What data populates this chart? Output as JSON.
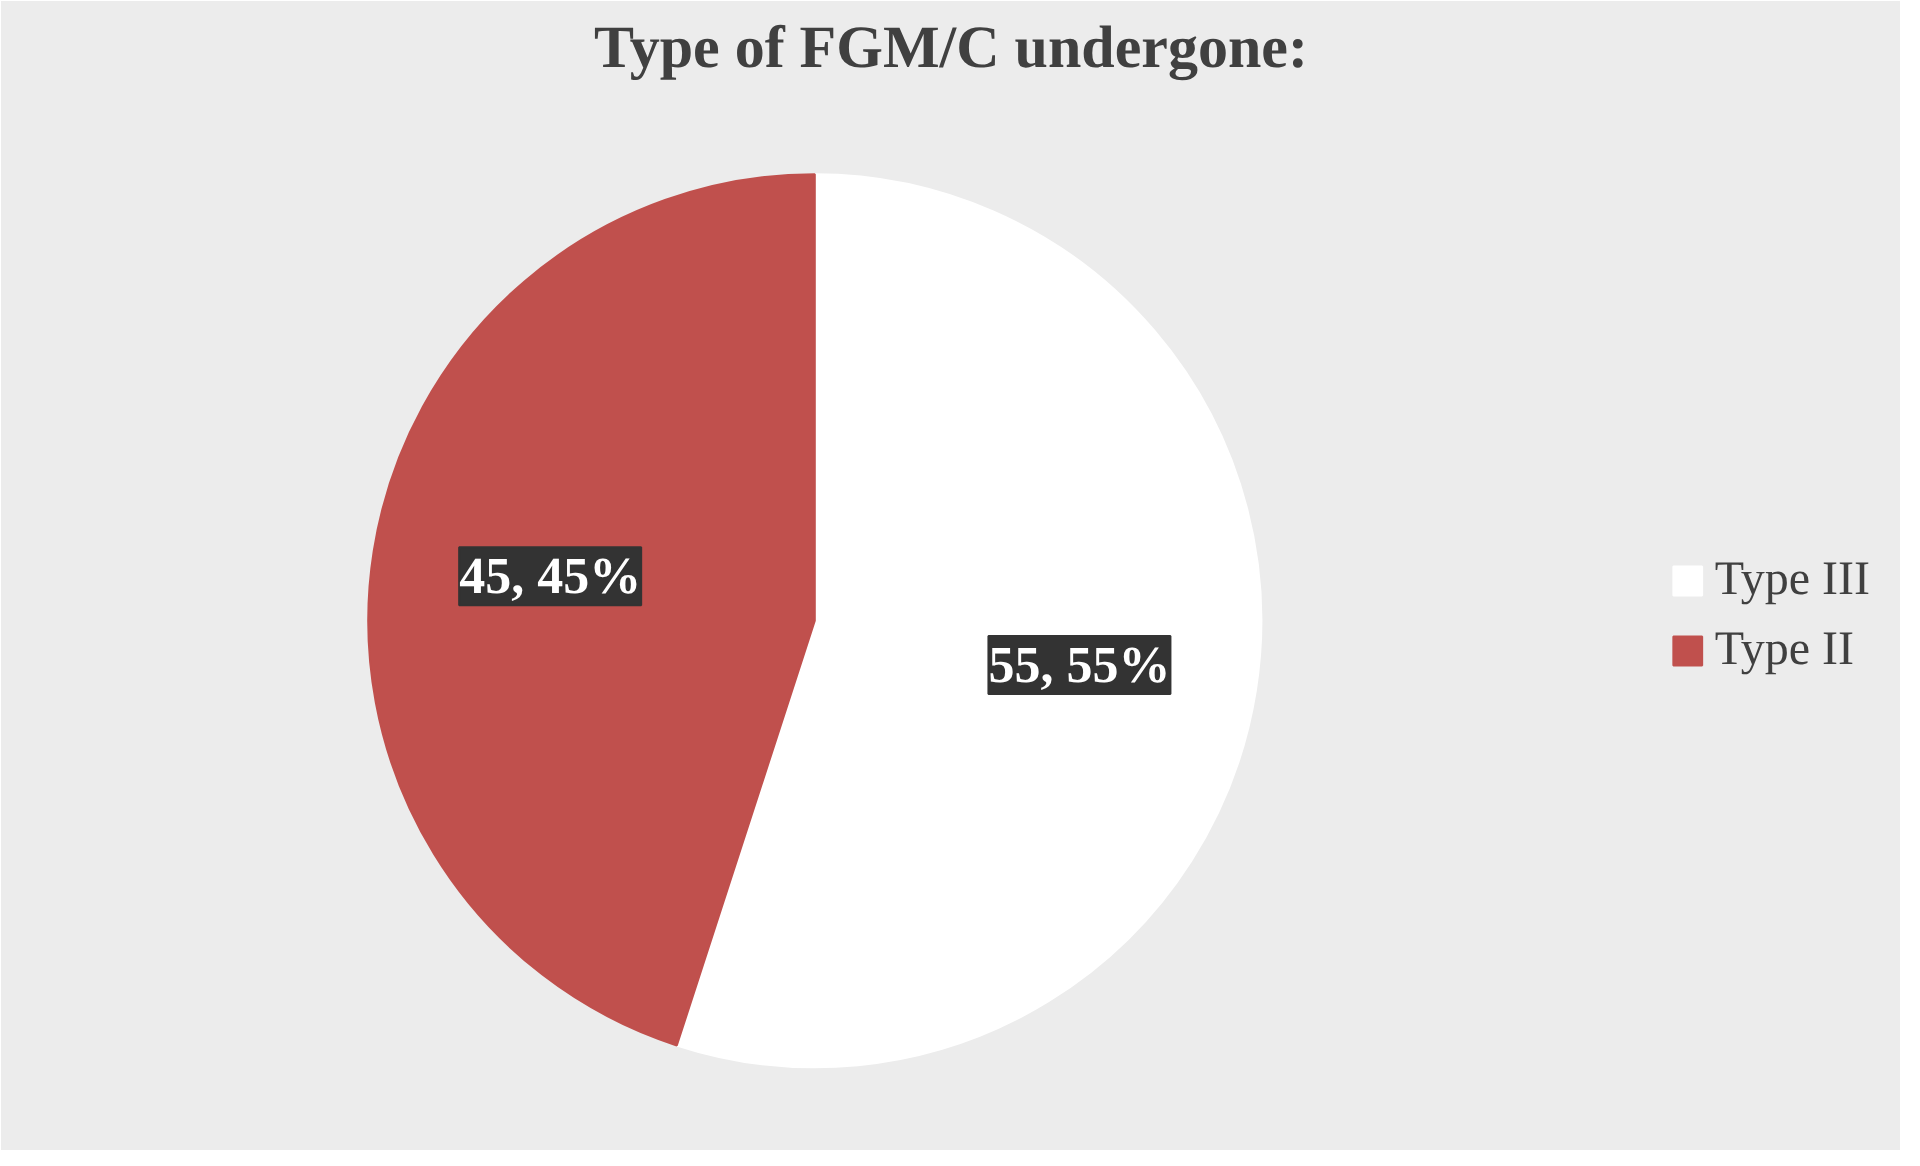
{
  "chart_data": {
    "type": "pie",
    "title": "Type of FGM/C undergone:",
    "categories": [
      "Type III",
      "Type II"
    ],
    "values": [
      55,
      45
    ],
    "colors": [
      "#ffffff",
      "#c0504d"
    ],
    "value_labels": [
      "55, 55%",
      "45, 45%"
    ],
    "legend": "right"
  }
}
